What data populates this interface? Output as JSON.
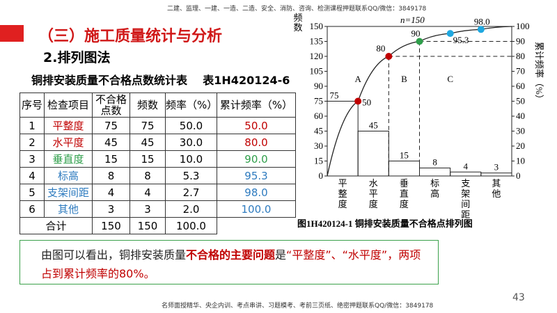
{
  "header": {
    "banner": "二建、监理、一建、一造、二造、安全、消防、咨询、检测课程押题联系QQ/微信：3849178",
    "title": "（三）施工质量统计与分析",
    "subtitle": "2.排列图法"
  },
  "table": {
    "caption": "铜排安装质量不合格点数统计表    表1H420124-6",
    "head": [
      "序号",
      "检查项目",
      "不合格点数",
      "频数",
      "频率（%）",
      "累计频率（%）"
    ],
    "rows": [
      [
        "1",
        "平整度",
        "75",
        "75",
        "50.0",
        "50.0"
      ],
      [
        "2",
        "水平度",
        "45",
        "45",
        "30.0",
        "80.0"
      ],
      [
        "3",
        "垂直度",
        "15",
        "15",
        "10.0",
        "90.0"
      ],
      [
        "4",
        "标高",
        "8",
        "8",
        "5.3",
        "95.3"
      ],
      [
        "5",
        "支架间距",
        "4",
        "4",
        "2.7",
        "98.0"
      ],
      [
        "6",
        "其他",
        "3",
        "3",
        "2.0",
        "100.0"
      ]
    ],
    "row_colors": [
      "#c00000",
      "#c00000",
      "#2e9e4a",
      "#2e7bbf",
      "#2e7bbf",
      "#2e7bbf"
    ],
    "total": [
      "合计",
      "150",
      "150",
      "100.0"
    ]
  },
  "chart_data": {
    "type": "pareto",
    "title": "n=150",
    "ylabel": "频数",
    "y2label": "累计频率（%）",
    "categories": [
      "平整度",
      "水平度",
      "垂直度",
      "标高",
      "支架间距",
      "其他"
    ],
    "values": [
      75,
      45,
      15,
      8,
      4,
      3
    ],
    "cumulative": [
      50,
      80,
      90,
      95.3,
      98.0,
      100
    ],
    "cumulative_labels": [
      "50",
      "80",
      "90",
      "95.3",
      "98.0",
      null
    ],
    "cumulative_colors": [
      "#c00000",
      "#c00000",
      "#2e9e4a",
      "#1fa8e0",
      "#1fa8e0",
      null
    ],
    "regions": [
      "A",
      "B",
      "C"
    ],
    "ylim": [
      0,
      150
    ],
    "yticks": [
      0,
      15,
      30,
      45,
      60,
      75,
      90,
      105,
      120,
      135,
      150
    ],
    "y2lim": [
      0,
      100
    ],
    "y2ticks": [
      0,
      10,
      20,
      30,
      40,
      50,
      60,
      70,
      80,
      90,
      100
    ],
    "caption": "图1H420124-1  铜排安装质量不合格点排列图"
  },
  "summary": [
    {
      "text": "由图可以看出，铜排安装质量",
      "color": "#222222"
    },
    {
      "text": "不合格的主要问题",
      "color": "#c00000"
    },
    {
      "text": "是",
      "color": "#222222"
    },
    {
      "text": "“平整度”、“水平度”，",
      "color": "#c00000"
    },
    {
      "text": "两项占到累计频率的80%。",
      "color": "#c00000"
    }
  ],
  "footer": "名师面授精华、央企内训、考点串讲、习题模考、考前三页纸、绝密押题联系QQ/微信：3849178",
  "page": "43"
}
